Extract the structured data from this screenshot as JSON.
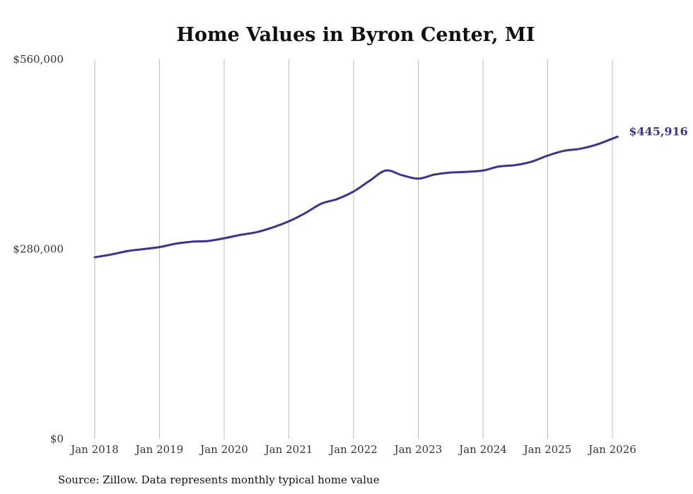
{
  "chart_data": {
    "type": "line",
    "title": "Home Values in Byron Center, MI",
    "xlabel": "",
    "ylabel": "",
    "source": "Source: Zillow. Data represents monthly typical home value",
    "ylim": [
      0,
      560000
    ],
    "y_ticks": [
      0,
      280000,
      560000
    ],
    "y_tick_labels": [
      "$0",
      "$280,000",
      "$560,000"
    ],
    "x_range": [
      2018.0,
      2026.0
    ],
    "x_ticks": [
      2018,
      2019,
      2020,
      2021,
      2022,
      2023,
      2024,
      2025,
      2026
    ],
    "x_tick_labels": [
      "Jan 2018",
      "Jan 2019",
      "Jan 2020",
      "Jan 2021",
      "Jan 2022",
      "Jan 2023",
      "Jan 2024",
      "Jan 2025",
      "Jan 2026"
    ],
    "grid": "vertical",
    "line_color": "#3a3594",
    "series": [
      {
        "name": "Typical home value",
        "x": [
          2018.0,
          2018.25,
          2018.5,
          2018.75,
          2019.0,
          2019.25,
          2019.5,
          2019.75,
          2020.0,
          2020.25,
          2020.5,
          2020.75,
          2021.0,
          2021.25,
          2021.5,
          2021.75,
          2022.0,
          2022.25,
          2022.5,
          2022.75,
          2023.0,
          2023.25,
          2023.5,
          2023.75,
          2024.0,
          2024.25,
          2024.5,
          2024.75,
          2025.0,
          2025.25,
          2025.5,
          2025.75,
          2026.0,
          2026.08
        ],
        "values": [
          268000,
          272000,
          277000,
          280000,
          283000,
          288000,
          291000,
          292000,
          296000,
          301000,
          305000,
          312000,
          321000,
          333000,
          347000,
          354000,
          365000,
          381000,
          396000,
          389000,
          384000,
          390000,
          393000,
          394000,
          396000,
          402000,
          404000,
          409000,
          418000,
          425000,
          428000,
          434000,
          443000,
          445916
        ]
      }
    ],
    "last_value_label": "$445,916"
  }
}
